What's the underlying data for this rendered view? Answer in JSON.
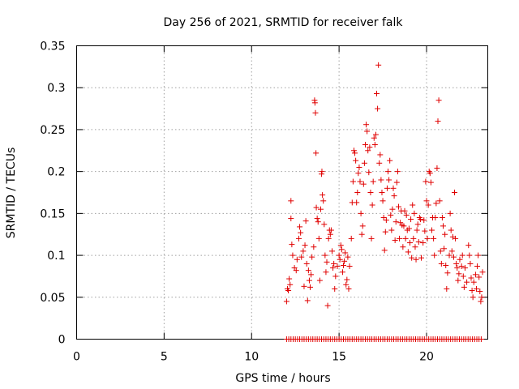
{
  "chart_data": {
    "type": "scatter",
    "title": "Day 256 of 2021, SRMTID for receiver falk",
    "xlabel": "GPS time / hours",
    "ylabel": "SRMTID / TECUs",
    "xlim": [
      0,
      23.5
    ],
    "ylim": [
      0,
      0.35
    ],
    "x_ticks": [
      0,
      5,
      10,
      15,
      20
    ],
    "x_tick_labels": [
      "0",
      "5",
      "10",
      "15",
      "20"
    ],
    "y_ticks": [
      0,
      0.05,
      0.1,
      0.15,
      0.2,
      0.25,
      0.3,
      0.35
    ],
    "y_tick_labels": [
      "0",
      "0.05",
      "0.1",
      "0.15",
      "0.2",
      "0.25",
      "0.3",
      "0.35"
    ],
    "grid": true,
    "marker": "plus",
    "color": "#e00000",
    "series": [
      {
        "name": "SRMTID",
        "points": [
          [
            12.0,
            0.045
          ],
          [
            12.05,
            0.06
          ],
          [
            12.1,
            0.058
          ],
          [
            12.15,
            0.072
          ],
          [
            12.2,
            0.065
          ],
          [
            12.25,
            0.165
          ],
          [
            12.25,
            0.144
          ],
          [
            12.3,
            0.113
          ],
          [
            12.35,
            0.1
          ],
          [
            12.45,
            0.085
          ],
          [
            12.55,
            0.082
          ],
          [
            12.6,
            0.095
          ],
          [
            12.7,
            0.12
          ],
          [
            12.75,
            0.134
          ],
          [
            12.8,
            0.127
          ],
          [
            12.85,
            0.098
          ],
          [
            12.95,
            0.105
          ],
          [
            13.0,
            0.063
          ],
          [
            13.05,
            0.112
          ],
          [
            13.1,
            0.141
          ],
          [
            13.15,
            0.09
          ],
          [
            13.2,
            0.046
          ],
          [
            13.25,
            0.082
          ],
          [
            13.3,
            0.07
          ],
          [
            13.35,
            0.062
          ],
          [
            13.4,
            0.077
          ],
          [
            13.45,
            0.098
          ],
          [
            13.55,
            0.11
          ],
          [
            13.6,
            0.285
          ],
          [
            13.62,
            0.282
          ],
          [
            13.65,
            0.27
          ],
          [
            13.68,
            0.222
          ],
          [
            13.7,
            0.157
          ],
          [
            13.75,
            0.144
          ],
          [
            13.8,
            0.14
          ],
          [
            13.85,
            0.12
          ],
          [
            13.9,
            0.07
          ],
          [
            13.95,
            0.155
          ],
          [
            14.0,
            0.197
          ],
          [
            14.02,
            0.2
          ],
          [
            14.05,
            0.172
          ],
          [
            14.1,
            0.165
          ],
          [
            14.15,
            0.137
          ],
          [
            14.2,
            0.1
          ],
          [
            14.25,
            0.08
          ],
          [
            14.3,
            0.092
          ],
          [
            14.35,
            0.04
          ],
          [
            14.4,
            0.12
          ],
          [
            14.45,
            0.13
          ],
          [
            14.5,
            0.125
          ],
          [
            14.55,
            0.13
          ],
          [
            14.6,
            0.105
          ],
          [
            14.65,
            0.085
          ],
          [
            14.7,
            0.09
          ],
          [
            14.75,
            0.06
          ],
          [
            14.8,
            0.075
          ],
          [
            14.9,
            0.087
          ],
          [
            15.0,
            0.1
          ],
          [
            15.05,
            0.095
          ],
          [
            15.1,
            0.112
          ],
          [
            15.15,
            0.107
          ],
          [
            15.2,
            0.08
          ],
          [
            15.25,
            0.088
          ],
          [
            15.3,
            0.093
          ],
          [
            15.35,
            0.103
          ],
          [
            15.4,
            0.065
          ],
          [
            15.45,
            0.071
          ],
          [
            15.5,
            0.098
          ],
          [
            15.55,
            0.06
          ],
          [
            15.6,
            0.087
          ],
          [
            15.7,
            0.12
          ],
          [
            15.75,
            0.163
          ],
          [
            15.8,
            0.188
          ],
          [
            15.85,
            0.225
          ],
          [
            15.9,
            0.222
          ],
          [
            15.95,
            0.213
          ],
          [
            16.0,
            0.163
          ],
          [
            16.05,
            0.175
          ],
          [
            16.1,
            0.198
          ],
          [
            16.15,
            0.205
          ],
          [
            16.2,
            0.188
          ],
          [
            16.25,
            0.15
          ],
          [
            16.3,
            0.125
          ],
          [
            16.35,
            0.135
          ],
          [
            16.4,
            0.185
          ],
          [
            16.45,
            0.21
          ],
          [
            16.5,
            0.232
          ],
          [
            16.55,
            0.256
          ],
          [
            16.6,
            0.248
          ],
          [
            16.65,
            0.225
          ],
          [
            16.7,
            0.199
          ],
          [
            16.75,
            0.229
          ],
          [
            16.8,
            0.175
          ],
          [
            16.85,
            0.12
          ],
          [
            16.9,
            0.16
          ],
          [
            16.95,
            0.188
          ],
          [
            17.0,
            0.24
          ],
          [
            17.05,
            0.232
          ],
          [
            17.1,
            0.244
          ],
          [
            17.15,
            0.293
          ],
          [
            17.2,
            0.275
          ],
          [
            17.25,
            0.327
          ],
          [
            17.3,
            0.21
          ],
          [
            17.35,
            0.22
          ],
          [
            17.4,
            0.19
          ],
          [
            17.45,
            0.175
          ],
          [
            17.5,
            0.165
          ],
          [
            17.55,
            0.145
          ],
          [
            17.6,
            0.106
          ],
          [
            17.65,
            0.128
          ],
          [
            17.7,
            0.142
          ],
          [
            17.75,
            0.18
          ],
          [
            17.8,
            0.2
          ],
          [
            17.85,
            0.19
          ],
          [
            17.9,
            0.213
          ],
          [
            17.95,
            0.148
          ],
          [
            18.0,
            0.13
          ],
          [
            18.05,
            0.155
          ],
          [
            18.1,
            0.18
          ],
          [
            18.15,
            0.171
          ],
          [
            18.2,
            0.118
          ],
          [
            18.25,
            0.14
          ],
          [
            18.3,
            0.187
          ],
          [
            18.35,
            0.2
          ],
          [
            18.4,
            0.158
          ],
          [
            18.45,
            0.12
          ],
          [
            18.5,
            0.139
          ],
          [
            18.55,
            0.153
          ],
          [
            18.6,
            0.136
          ],
          [
            18.65,
            0.11
          ],
          [
            18.7,
            0.135
          ],
          [
            18.75,
            0.153
          ],
          [
            18.8,
            0.12
          ],
          [
            18.85,
            0.148
          ],
          [
            18.9,
            0.13
          ],
          [
            18.95,
            0.104
          ],
          [
            19.0,
            0.132
          ],
          [
            19.05,
            0.115
          ],
          [
            19.1,
            0.143
          ],
          [
            19.15,
            0.097
          ],
          [
            19.2,
            0.16
          ],
          [
            19.25,
            0.12
          ],
          [
            19.3,
            0.15
          ],
          [
            19.35,
            0.11
          ],
          [
            19.4,
            0.095
          ],
          [
            19.45,
            0.13
          ],
          [
            19.5,
            0.137
          ],
          [
            19.55,
            0.116
          ],
          [
            19.6,
            0.145
          ],
          [
            19.65,
            0.143
          ],
          [
            19.7,
            0.097
          ],
          [
            19.8,
            0.115
          ],
          [
            19.85,
            0.142
          ],
          [
            19.9,
            0.129
          ],
          [
            19.95,
            0.188
          ],
          [
            20.0,
            0.165
          ],
          [
            20.05,
            0.12
          ],
          [
            20.1,
            0.16
          ],
          [
            20.15,
            0.2
          ],
          [
            20.2,
            0.198
          ],
          [
            20.25,
            0.187
          ],
          [
            20.3,
            0.13
          ],
          [
            20.35,
            0.145
          ],
          [
            20.4,
            0.12
          ],
          [
            20.45,
            0.1
          ],
          [
            20.5,
            0.145
          ],
          [
            20.55,
            0.162
          ],
          [
            20.6,
            0.204
          ],
          [
            20.65,
            0.26
          ],
          [
            20.7,
            0.285
          ],
          [
            20.75,
            0.165
          ],
          [
            20.8,
            0.105
          ],
          [
            20.85,
            0.09
          ],
          [
            20.9,
            0.145
          ],
          [
            20.95,
            0.135
          ],
          [
            21.0,
            0.108
          ],
          [
            21.05,
            0.125
          ],
          [
            21.1,
            0.088
          ],
          [
            21.15,
            0.06
          ],
          [
            21.2,
            0.079
          ],
          [
            21.3,
            0.1
          ],
          [
            21.35,
            0.15
          ],
          [
            21.4,
            0.13
          ],
          [
            21.45,
            0.105
          ],
          [
            21.5,
            0.122
          ],
          [
            21.55,
            0.098
          ],
          [
            21.6,
            0.175
          ],
          [
            21.65,
            0.12
          ],
          [
            21.7,
            0.09
          ],
          [
            21.75,
            0.085
          ],
          [
            21.8,
            0.07
          ],
          [
            21.85,
            0.078
          ],
          [
            21.9,
            0.095
          ],
          [
            22.0,
            0.087
          ],
          [
            22.05,
            0.1
          ],
          [
            22.1,
            0.075
          ],
          [
            22.15,
            0.062
          ],
          [
            22.2,
            0.085
          ],
          [
            22.3,
            0.068
          ],
          [
            22.4,
            0.112
          ],
          [
            22.45,
            0.1
          ],
          [
            22.5,
            0.09
          ],
          [
            22.55,
            0.073
          ],
          [
            22.6,
            0.058
          ],
          [
            22.65,
            0.05
          ],
          [
            22.7,
            0.068
          ],
          [
            22.8,
            0.077
          ],
          [
            22.85,
            0.06
          ],
          [
            22.9,
            0.087
          ],
          [
            22.95,
            0.1
          ],
          [
            23.0,
            0.074
          ],
          [
            23.05,
            0.057
          ],
          [
            23.1,
            0.045
          ],
          [
            23.15,
            0.05
          ],
          [
            23.2,
            0.08
          ]
        ]
      },
      {
        "name": "zero",
        "x_start": 12.0,
        "x_end": 23.15,
        "x_step": 0.125,
        "y": 0
      }
    ]
  }
}
